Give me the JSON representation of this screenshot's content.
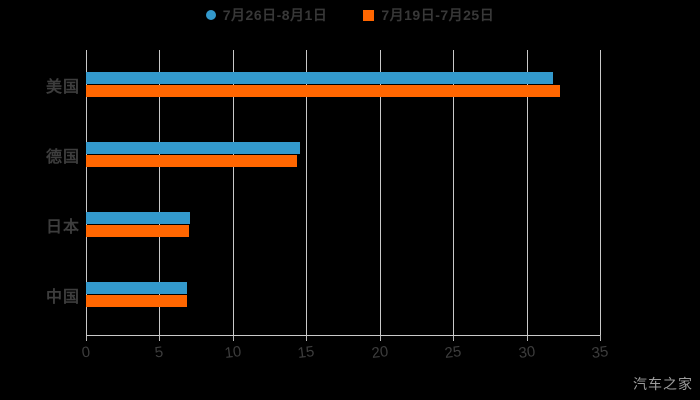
{
  "chart_data": {
    "type": "bar",
    "orientation": "horizontal",
    "title": "",
    "xlabel": "",
    "ylabel": "",
    "categories": [
      "美国",
      "德国",
      "日本",
      "中国"
    ],
    "series": [
      {
        "name": "7月26日-8月1日",
        "color": "#3399cc",
        "marker": "circle",
        "values": [
          31.8,
          14.6,
          7.1,
          6.9
        ]
      },
      {
        "name": "7月19日-7月25日",
        "color": "#ff6600",
        "marker": "square",
        "values": [
          32.3,
          14.4,
          7.0,
          6.9
        ]
      }
    ],
    "xlim": [
      0,
      35
    ],
    "xticks": [
      0,
      5,
      10,
      15,
      20,
      25,
      30,
      35
    ],
    "grid": true,
    "legend_position": "top-center"
  },
  "watermark": "汽车之家",
  "colors": {
    "background": "#000000",
    "series_blue": "#3399cc",
    "series_orange": "#ff6600",
    "gridline": "#c9c9c9",
    "axis_text": "#3d3d3d",
    "legend_text": "#383838",
    "watermark_text": "#9c9c9c"
  }
}
